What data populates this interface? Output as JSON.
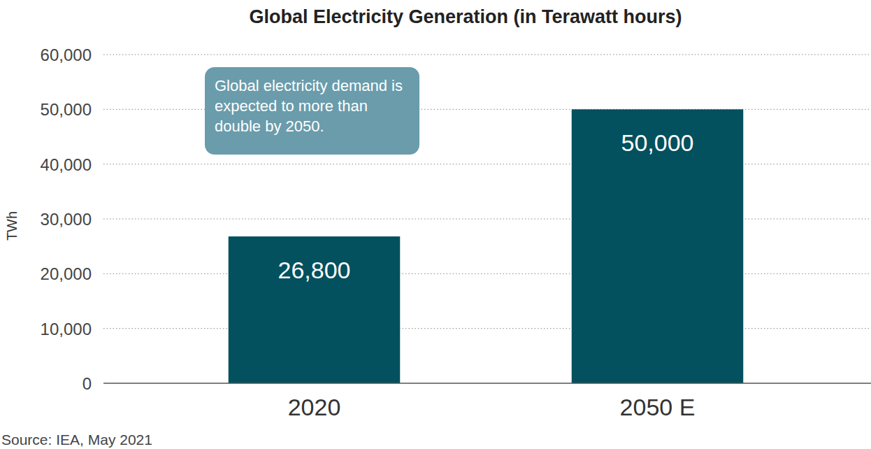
{
  "chart_data": {
    "type": "bar",
    "title": "Global Electricity Generation (in Terawatt hours)",
    "y_label": "TWh",
    "categories": [
      "2020",
      "2050 E"
    ],
    "values": [
      26800,
      50000
    ],
    "value_labels": [
      "26,800",
      "50,000"
    ],
    "color": "#03505e",
    "ylim": [
      0,
      60000
    ],
    "yticks": [
      0,
      {
        "value": 10000,
        "label": "10,000"
      },
      {
        "value": 20000,
        "label": "20,000"
      },
      {
        "value": 30000,
        "label": "30,000"
      },
      {
        "value": 40000,
        "label": "40,000"
      },
      {
        "value": 50000,
        "label": "50,000"
      },
      {
        "value": 60000,
        "label": "60,000"
      }
    ],
    "grid": true,
    "data_labels": true,
    "annotation": "Global electricity demand is expected to more than double by 2050.",
    "source": "Source: IEA, May 2021"
  }
}
